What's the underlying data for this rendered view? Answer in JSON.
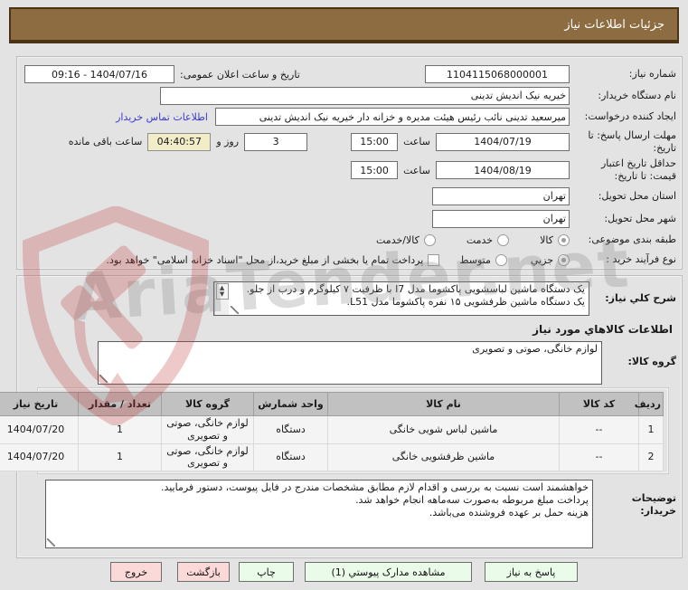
{
  "header": {
    "title": "جزئیات اطلاعات نیاز"
  },
  "form": {
    "need_number": {
      "label": "شماره نیاز:",
      "value": "1104115068000001"
    },
    "public_announce": {
      "label": "تاریخ و ساعت اعلان عمومی:",
      "value": "1404/07/16 - 09:16"
    },
    "buyer_org": {
      "label": "نام دستگاه خریدار:",
      "value": "خیریه نیک اندیش تدینی"
    },
    "request_creator": {
      "label": "ایجاد کننده درخواست:",
      "value": "میرسعید تدینی نائب رئیس هیئت مدیره و خزانه دار خیریه نیک اندیش تدینی",
      "contact_link": "اطلاعات تماس خریدار"
    },
    "reply_deadline": {
      "label": "مهلت ارسال پاسخ: تا تاریخ:",
      "date": "1404/07/19",
      "hour_label": "ساعت",
      "time": "15:00"
    },
    "remaining": {
      "days": "3",
      "days_label": "روز و",
      "time": "04:40:57",
      "suffix": "ساعت باقی مانده"
    },
    "price_validity": {
      "label": "حداقل تاریخ اعتبار قیمت: تا تاریخ:",
      "date": "1404/08/19",
      "hour_label": "ساعت",
      "time": "15:00"
    },
    "province": {
      "label": "استان محل تحویل:",
      "value": "تهران"
    },
    "city": {
      "label": "شهر محل تحویل:",
      "value": "تهران"
    },
    "subject_class": {
      "label": "طبقه بندی موضوعی:",
      "options": [
        {
          "label": "کالا",
          "selected": true
        },
        {
          "label": "خدمت",
          "selected": false
        },
        {
          "label": "کالا/خدمت",
          "selected": false
        }
      ]
    },
    "purchase_type": {
      "label": "نوع فرآیند خرید :",
      "options": [
        {
          "label": "جزیي",
          "selected": true
        },
        {
          "label": "متوسط",
          "selected": false
        }
      ],
      "checkbox_label": "پرداخت تمام یا بخشی از مبلغ خرید،از محل \"اسناد خزانه اسلامی\" خواهد بود.",
      "checkbox_checked": false
    }
  },
  "need_desc": {
    "label": "شرح کلي نیاز:",
    "value": "یک دستگاه ماشین لباسشویی پاکشوما مدل I7 با ظرفیت ۷ کیلوگرم و درب از جلو.\nیک دستگاه ماشین ظرفشویی ۱۵ نفره پاکشوما مدل L51."
  },
  "goods_section": {
    "title": "اطلاعات کالاهاي مورد نیاز",
    "group_label": "گروه کالا:",
    "group_value": "لوازم خانگی، صوتی و تصویری"
  },
  "table": {
    "headers": [
      "ردیف",
      "کد کالا",
      "نام کالا",
      "واحد شمارش",
      "گروه کالا",
      "تعداد / مقدار",
      "تاریخ نیاز"
    ],
    "rows": [
      [
        "1",
        "--",
        "ماشین لباس شویی خانگی",
        "دستگاه",
        "لوازم خانگی، صوتی و تصویری",
        "1",
        "1404/07/20"
      ],
      [
        "2",
        "--",
        "ماشین ظرفشویی خانگی",
        "دستگاه",
        "لوازم خانگی، صوتی و تصویری",
        "1",
        "1404/07/20"
      ]
    ]
  },
  "buyer_notes": {
    "label": "توضیحات خریدار:",
    "value": "خواهشمند است نسبت به بررسی و اقدام لازم مطابق مشخصات مندرج در فایل پیوست، دستور فرمایید.\nپرداخت مبلغ مربوطه به‌صورت سه‌ماهه انجام خواهد شد.\nهزینه حمل بر عهده فروشنده می‌باشد."
  },
  "footer": {
    "buttons": [
      {
        "label": "پاسخ به نیاز",
        "style": "green"
      },
      {
        "label": "مشاهده مدارک پیوستي (1)",
        "style": "green"
      },
      {
        "label": "چاپ",
        "style": "green"
      },
      {
        "label": "بازگشت",
        "style": "pink"
      },
      {
        "label": "خروج",
        "style": "pink"
      }
    ]
  },
  "watermark": {
    "text": "AriaTender.net"
  },
  "colors": {
    "titlebar": "#8e6c41",
    "remaining_highlight": "#f1edc9",
    "button_green": "#eafbea",
    "button_pink": "#fbd9d9",
    "link_blue": "#3b3bd1"
  }
}
